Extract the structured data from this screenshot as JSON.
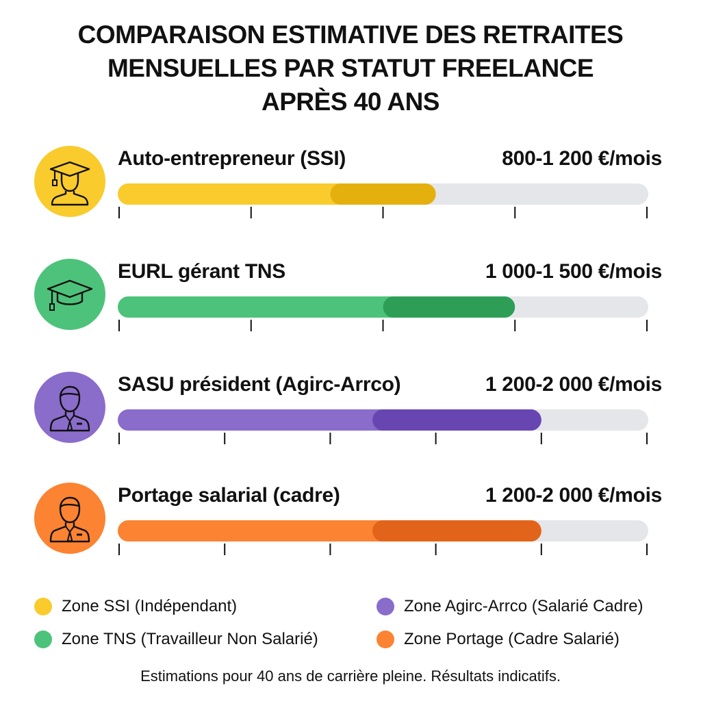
{
  "chart_data": {
    "type": "bar",
    "title_lines": [
      "COMPARAISON ESTIMATIVE DES RETRAITES",
      "MENSUELLES PAR STATUT FREELANCE",
      "APRÈS 40 ANS"
    ],
    "unit": "€/mois",
    "track_color": "#E5E6EA",
    "rows": [
      {
        "label": "Auto-entrepreneur (SSI)",
        "range_label": "800-1 200 €/mois",
        "low": 800,
        "high": 1200,
        "xlim": [
          0,
          2000
        ],
        "ticks": [
          0,
          500,
          1000,
          1500,
          2000
        ],
        "color": "#F9CB2C",
        "dark_color": "#E3B00E",
        "icon": "graduate-icon"
      },
      {
        "label": "EURL gérant TNS",
        "range_label": "1 000-1 500 €/mois",
        "low": 1000,
        "high": 1500,
        "xlim": [
          0,
          2000
        ],
        "ticks": [
          0,
          500,
          1000,
          1500,
          2000
        ],
        "color": "#4DC27A",
        "dark_color": "#2E9E57",
        "icon": "graduation-cap-icon"
      },
      {
        "label": "SASU président (Agirc-Arrco)",
        "range_label": "1 200-2 000 €/mois",
        "low": 1200,
        "high": 2000,
        "xlim": [
          0,
          2500
        ],
        "ticks": [
          0,
          500,
          1000,
          1500,
          2000,
          2500
        ],
        "color": "#8A6CCB",
        "dark_color": "#6846B2",
        "icon": "businessman-icon"
      },
      {
        "label": "Portage salarial (cadre)",
        "range_label": "1 200-2 000 €/mois",
        "low": 1200,
        "high": 2000,
        "xlim": [
          0,
          2500
        ],
        "ticks": [
          0,
          500,
          1000,
          1500,
          2000,
          2500
        ],
        "color": "#FB8331",
        "dark_color": "#E2641A",
        "icon": "businessman-icon"
      }
    ],
    "legend": [
      {
        "label": "Zone SSI (Indépendant)",
        "color": "#F9CB2C"
      },
      {
        "label": "Zone Agirc-Arrco (Salarié Cadre)",
        "color": "#8A6CCB"
      },
      {
        "label": "Zone TNS (Travailleur Non Salarié)",
        "color": "#4DC27A"
      },
      {
        "label": "Zone Portage (Cadre Salarié)",
        "color": "#FB8331"
      }
    ],
    "footer": "Estimations pour 40 ans de carrière pleine. Résultats indicatifs."
  }
}
